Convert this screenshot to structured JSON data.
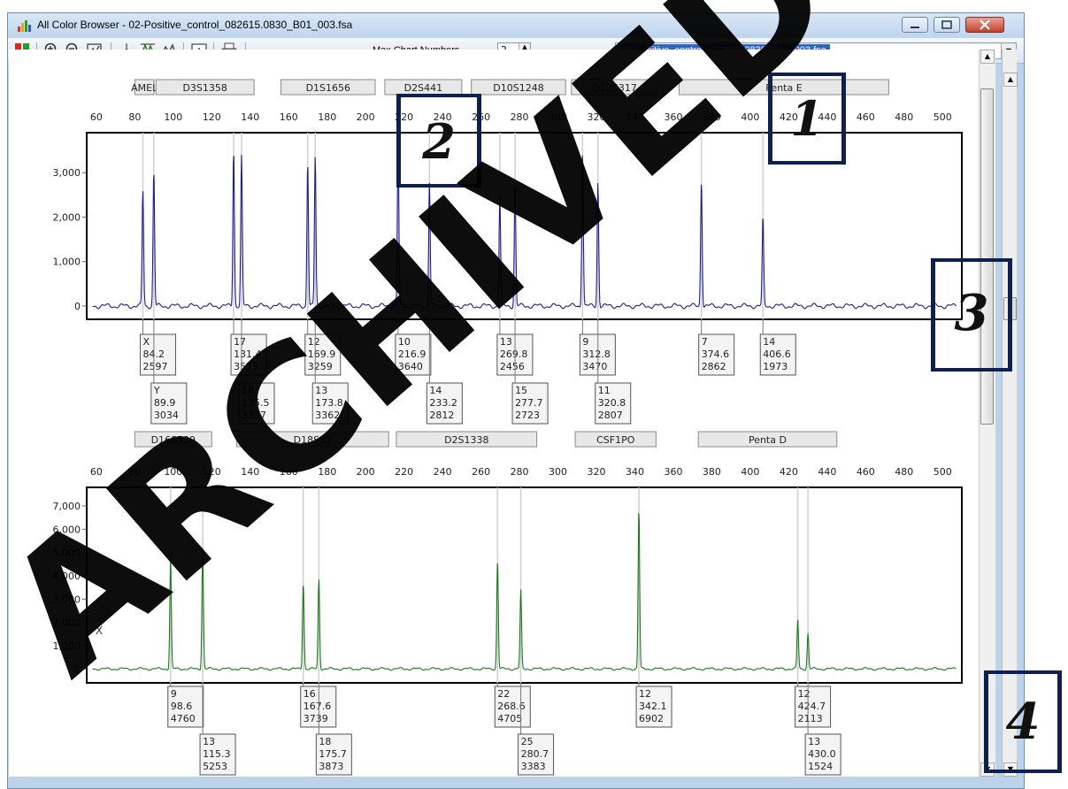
{
  "window": {
    "title": "All Color Browser - 02-Positive_control_082615.0830_B01_003.fsa"
  },
  "toolbar": {
    "icons": [
      "grid-icon",
      "zoom-in-icon",
      "zoom-out-icon",
      "zoom-fit-icon",
      "crosshair-icon",
      "peak-label-icon",
      "scale-icon",
      "chart-icon",
      "print-icon"
    ],
    "max_chart_label": "Max Chart Numbers",
    "max_chart_value": "2",
    "file_select": "02-Positive_control_082615.0830_B01_003.fsa"
  },
  "callouts": [
    "1",
    "2",
    "3",
    "4"
  ],
  "watermark": "ARCHIVED",
  "colors": {
    "panel1": "#1c1c9a",
    "panel2": "#1a7a1a",
    "marker_bg": "#e8e8e8"
  },
  "chart_data": [
    {
      "type": "line",
      "x_ticks": [
        "60",
        "80",
        "100",
        "120",
        "140",
        "160",
        "180",
        "200",
        "220",
        "240",
        "260",
        "280",
        "300",
        "320",
        "340",
        "360",
        "380",
        "400",
        "420",
        "440",
        "460",
        "480",
        "500"
      ],
      "y_ticks": [
        "0",
        "1,000",
        "2,000",
        "3,000"
      ],
      "ylim": [
        -300,
        3900
      ],
      "xlim": [
        55,
        510
      ],
      "markers": [
        {
          "name": "AMEL",
          "x0": 80,
          "x1": 90
        },
        {
          "name": "D3S1358",
          "x0": 91,
          "x1": 142
        },
        {
          "name": "D1S1656",
          "x0": 156,
          "x1": 205
        },
        {
          "name": "D2S441",
          "x0": 210,
          "x1": 250
        },
        {
          "name": "D10S1248",
          "x0": 255,
          "x1": 304
        },
        {
          "name": "D13S317",
          "x0": 307,
          "x1": 352
        },
        {
          "name": "Penta E",
          "x0": 363,
          "x1": 472
        }
      ],
      "peaks": [
        {
          "allele": "X",
          "size": "84.2",
          "height": "2597",
          "x": 84.2,
          "y": 2597,
          "row": 1
        },
        {
          "allele": "Y",
          "size": "89.9",
          "height": "3034",
          "x": 89.9,
          "y": 3034,
          "row": 2
        },
        {
          "allele": "17",
          "size": "131.4",
          "height": "3523",
          "x": 131.4,
          "y": 3523,
          "row": 1
        },
        {
          "allele": "18",
          "size": "135.5",
          "height": "3357",
          "x": 135.5,
          "y": 3357,
          "row": 2
        },
        {
          "allele": "12",
          "size": "169.9",
          "height": "3259",
          "x": 169.9,
          "y": 3259,
          "row": 1
        },
        {
          "allele": "13",
          "size": "173.8",
          "height": "3362",
          "x": 173.8,
          "y": 3362,
          "row": 2
        },
        {
          "allele": "10",
          "size": "216.9",
          "height": "3640",
          "x": 216.9,
          "y": 3640,
          "row": 1
        },
        {
          "allele": "14",
          "size": "233.2",
          "height": "2812",
          "x": 233.2,
          "y": 2812,
          "row": 2
        },
        {
          "allele": "13",
          "size": "269.8",
          "height": "2456",
          "x": 269.8,
          "y": 2456,
          "row": 1
        },
        {
          "allele": "15",
          "size": "277.7",
          "height": "2723",
          "x": 277.7,
          "y": 2723,
          "row": 2
        },
        {
          "allele": "9",
          "size": "312.8",
          "height": "3470",
          "x": 312.8,
          "y": 3470,
          "row": 1
        },
        {
          "allele": "11",
          "size": "320.8",
          "height": "2807",
          "x": 320.8,
          "y": 2807,
          "row": 2
        },
        {
          "allele": "7",
          "size": "374.6",
          "height": "2862",
          "x": 374.6,
          "y": 2862,
          "row": 1
        },
        {
          "allele": "14",
          "size": "406.6",
          "height": "1973",
          "x": 406.6,
          "y": 1973,
          "row": 1
        }
      ]
    },
    {
      "type": "line",
      "x_ticks": [
        "60",
        "80",
        "100",
        "120",
        "140",
        "160",
        "180",
        "200",
        "220",
        "240",
        "260",
        "280",
        "300",
        "320",
        "340",
        "360",
        "380",
        "400",
        "420",
        "440",
        "460",
        "480",
        "500"
      ],
      "y_ticks": [
        "0",
        "1,000",
        "2,000",
        "3,000",
        "4,000",
        "5,000",
        "6,000",
        "7,000"
      ],
      "ylim": [
        -600,
        7800
      ],
      "xlim": [
        55,
        510
      ],
      "markers": [
        {
          "name": "D16S539",
          "x0": 80,
          "x1": 120
        },
        {
          "name": "D18S51",
          "x0": 133,
          "x1": 212
        },
        {
          "name": "D2S1338",
          "x0": 216,
          "x1": 289
        },
        {
          "name": "CSF1PO",
          "x0": 309,
          "x1": 351
        },
        {
          "name": "Penta D",
          "x0": 373,
          "x1": 445
        }
      ],
      "annotation": "X",
      "peaks": [
        {
          "allele": "9",
          "size": "98.6",
          "height": "4760",
          "x": 98.6,
          "y": 4760,
          "row": 1
        },
        {
          "allele": "13",
          "size": "115.3",
          "height": "5253",
          "x": 115.3,
          "y": 5253,
          "row": 2
        },
        {
          "allele": "16",
          "size": "167.6",
          "height": "3739",
          "x": 167.6,
          "y": 3739,
          "row": 1
        },
        {
          "allele": "18",
          "size": "175.7",
          "height": "3873",
          "x": 175.7,
          "y": 3873,
          "row": 2
        },
        {
          "allele": "22",
          "size": "268.6",
          "height": "4705",
          "x": 268.6,
          "y": 4705,
          "row": 1
        },
        {
          "allele": "25",
          "size": "280.7",
          "height": "3383",
          "x": 280.7,
          "y": 3383,
          "row": 2
        },
        {
          "allele": "12",
          "size": "342.1",
          "height": "6902",
          "x": 342.1,
          "y": 6902,
          "row": 1
        },
        {
          "allele": "12",
          "size": "424.7",
          "height": "2113",
          "x": 424.7,
          "y": 2113,
          "row": 1
        },
        {
          "allele": "13",
          "size": "430.0",
          "height": "1524",
          "x": 430.0,
          "y": 1524,
          "row": 2
        }
      ]
    }
  ]
}
